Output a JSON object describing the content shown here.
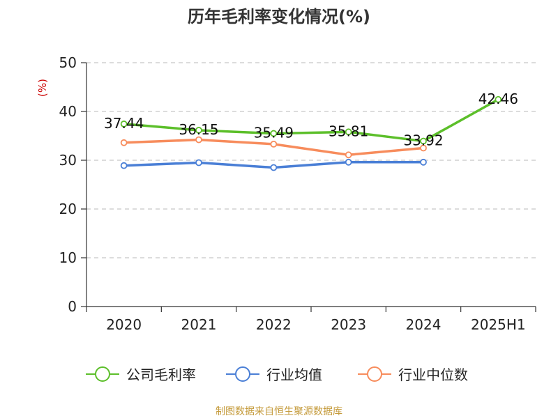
{
  "chart_data": {
    "type": "line",
    "title": "历年毛利率变化情况(%)",
    "ylabel": "(%)",
    "categories": [
      "2020",
      "2021",
      "2022",
      "2023",
      "2024",
      "2025H1"
    ],
    "ylim": [
      0,
      50
    ],
    "yticks": [
      0,
      10,
      20,
      30,
      40,
      50
    ],
    "grid": true,
    "legend_position": "bottom",
    "series": [
      {
        "name": "公司毛利率",
        "color": "#5cbf2a",
        "values": [
          37.44,
          36.15,
          35.49,
          35.81,
          33.92,
          42.46
        ],
        "labels": [
          "37.44",
          "36.15",
          "35.49",
          "35.81",
          "33.92",
          "42.46"
        ]
      },
      {
        "name": "行业均值",
        "color": "#4a7fd6",
        "values": [
          28.9,
          29.5,
          28.5,
          29.6,
          29.6,
          null
        ]
      },
      {
        "name": "行业中位数",
        "color": "#f78c5c",
        "values": [
          33.6,
          34.2,
          33.3,
          31.1,
          32.5,
          null
        ]
      }
    ]
  },
  "source": "制图数据来自恒生聚源数据库"
}
